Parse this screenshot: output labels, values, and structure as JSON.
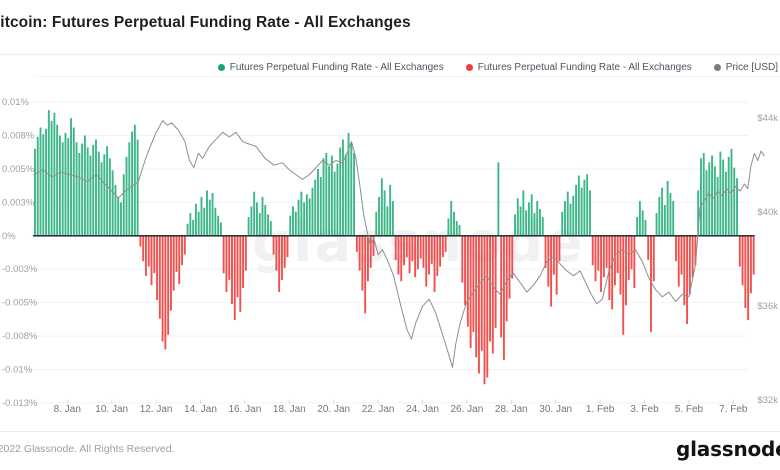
{
  "header": {
    "title": "Bitcoin: Futures Perpetual Funding Rate - All Exchanges"
  },
  "legend": {
    "items": [
      {
        "label": "Futures Perpetual Funding Rate - All Exchanges",
        "color": "#14a86f"
      },
      {
        "label": "Futures Perpetual Funding Rate - All Exchanges",
        "color": "#ef3f3c"
      },
      {
        "label": "Price [USD]",
        "color": "#7d7d7d"
      }
    ]
  },
  "watermark": {
    "text": "glassnode"
  },
  "footer": {
    "copyright": "© 2022 Glassnode. All Rights Reserved.",
    "logo": "glassnode"
  },
  "chart_data": {
    "type": "bar+line",
    "title": "Bitcoin: Futures Perpetual Funding Rate - All Exchanges",
    "grid": "horizontal",
    "legend_position": "top-right",
    "series_meta": [
      {
        "name": "Futures Perpetual Funding Rate - All Exchanges",
        "type": "bar",
        "polarity": "positive",
        "color": "#3db787"
      },
      {
        "name": "Futures Perpetual Funding Rate - All Exchanges",
        "type": "bar",
        "polarity": "negative",
        "color": "#f0514e"
      },
      {
        "name": "Price [USD]",
        "type": "line",
        "color": "#8e8e8e"
      }
    ],
    "y_left": {
      "unit": "%",
      "range_top": 0.01,
      "range_bottom": -0.0125,
      "ticks": [
        {
          "label": "0.01%",
          "value": 0.01
        },
        {
          "label": "0.008%",
          "value": 0.0075
        },
        {
          "label": "0.005%",
          "value": 0.005
        },
        {
          "label": "0.003%",
          "value": 0.0025
        },
        {
          "label": "0%",
          "value": 0
        },
        {
          "label": "-0.003%",
          "value": -0.0025
        },
        {
          "label": "-0.005%",
          "value": -0.005
        },
        {
          "label": "-0.008%",
          "value": -0.0075
        },
        {
          "label": "-0.01%",
          "value": -0.01
        },
        {
          "label": "-0.013%",
          "value": -0.0125
        }
      ]
    },
    "y_right": {
      "unit": "USD",
      "ticks": [
        {
          "label": "$44k",
          "value": 44
        },
        {
          "label": "$40k",
          "value": 40
        },
        {
          "label": "$36k",
          "value": 36
        },
        {
          "label": "$32k",
          "value": 32
        }
      ]
    },
    "x_axis": {
      "start_date": "6. Jan (12:00)",
      "end_date": "7. Feb (late)",
      "ticks": [
        {
          "label": "8. Jan",
          "day": 1.5
        },
        {
          "label": "10. Jan",
          "day": 3.5
        },
        {
          "label": "12. Jan",
          "day": 5.5
        },
        {
          "label": "14. Jan",
          "day": 7.5
        },
        {
          "label": "16. Jan",
          "day": 9.5
        },
        {
          "label": "18. Jan",
          "day": 11.5
        },
        {
          "label": "20. Jan",
          "day": 13.5
        },
        {
          "label": "22. Jan",
          "day": 15.5
        },
        {
          "label": "24. Jan",
          "day": 17.5
        },
        {
          "label": "26. Jan",
          "day": 19.5
        },
        {
          "label": "28. Jan",
          "day": 21.5
        },
        {
          "label": "30. Jan",
          "day": 23.5
        },
        {
          "label": "1. Feb",
          "day": 25.5
        },
        {
          "label": "3. Feb",
          "day": 27.5
        },
        {
          "label": "5. Feb",
          "day": 29.5
        },
        {
          "label": "7. Feb",
          "day": 31.5
        }
      ]
    },
    "funding": {
      "name": "Futures Perpetual Funding Rate - All Exchanges",
      "unit": "0.001 %",
      "bars_per_day": 8,
      "values": [
        6.5,
        7.4,
        8.1,
        7.6,
        8.0,
        9.4,
        8.6,
        9.2,
        8.3,
        7.5,
        7.0,
        7.7,
        7.3,
        8.8,
        8.1,
        7.0,
        6.2,
        6.9,
        7.5,
        6.6,
        6.0,
        6.8,
        7.2,
        6.3,
        5.5,
        6.1,
        6.7,
        5.8,
        4.9,
        3.8,
        2.9,
        2.5,
        4.6,
        5.9,
        7.0,
        7.8,
        8.3,
        7.2,
        -0.8,
        -1.9,
        -3.0,
        -2.3,
        -3.7,
        -2.8,
        -4.8,
        -6.2,
        -7.9,
        -8.5,
        -7.4,
        -5.6,
        -4.1,
        -2.7,
        -3.6,
        -2.2,
        -1.4,
        0.9,
        1.7,
        1.2,
        2.4,
        1.8,
        2.9,
        2.1,
        3.4,
        2.7,
        3.2,
        2.1,
        1.5,
        1.0,
        -2.8,
        -4.2,
        -3.3,
        -5.1,
        -6.3,
        -4.6,
        -5.7,
        -3.9,
        -2.6,
        1.4,
        2.2,
        3.3,
        2.5,
        1.7,
        2.9,
        2.3,
        1.6,
        1.1,
        -1.4,
        -2.6,
        -4.2,
        -3.3,
        -2.4,
        -1.6,
        1.5,
        2.2,
        1.8,
        2.7,
        3.3,
        2.5,
        3.1,
        2.8,
        3.6,
        4.2,
        5.0,
        4.4,
        5.8,
        6.2,
        5.2,
        6.0,
        4.8,
        5.4,
        6.6,
        7.2,
        6.1,
        7.7,
        7.0,
        6.2,
        -1.2,
        -2.6,
        -4.1,
        -5.8,
        -3.4,
        -2.4,
        -1.5,
        1.8,
        2.9,
        4.3,
        3.4,
        2.2,
        3.8,
        2.6,
        -1.8,
        -2.9,
        -3.4,
        -2.2,
        -1.6,
        -2.8,
        -1.9,
        -3.1,
        -2.5,
        -1.7,
        -2.4,
        -3.8,
        -2.9,
        -2.1,
        -4.2,
        -3.0,
        -2.3,
        -1.6,
        -1.2,
        1.3,
        2.6,
        1.8,
        1.1,
        0.8,
        -3.5,
        -5.2,
        -6.8,
        -8.4,
        -7.2,
        -9.1,
        -10.3,
        -8.6,
        -11.1,
        -10.6,
        -7.9,
        -8.8,
        -6.9,
        5.5,
        -7.6,
        -9.3,
        -6.4,
        -4.7,
        -3.2,
        1.6,
        2.8,
        2.2,
        3.4,
        1.9,
        2.5,
        3.1,
        1.7,
        2.6,
        2.0,
        1.4,
        -2.4,
        -3.8,
        -5.3,
        -2.9,
        -4.4,
        -1.9,
        1.8,
        2.6,
        3.3,
        2.4,
        3.0,
        3.8,
        4.5,
        3.6,
        4.2,
        4.6,
        3.4,
        -2.2,
        -3.4,
        -2.6,
        -4.2,
        -3.1,
        -2.4,
        -4.8,
        -5.5,
        -3.7,
        -2.8,
        -4.4,
        -7.4,
        -5.2,
        -3.3,
        -2.5,
        -3.9,
        1.4,
        2.6,
        1.9,
        1.2,
        -1.8,
        -7.2,
        -3.4,
        1.7,
        2.9,
        3.6,
        2.3,
        4.1,
        3.2,
        2.6,
        -1.9,
        -3.8,
        -2.9,
        -5.2,
        -6.6,
        -4.4,
        -3.1,
        -2.2,
        3.4,
        5.8,
        6.2,
        4.9,
        5.5,
        6.0,
        5.2,
        4.4,
        6.3,
        5.7,
        4.8,
        5.9,
        6.5,
        5.1,
        4.3,
        -2.3,
        -3.7,
        -5.4,
        -6.3,
        -4.3,
        -2.9
      ]
    },
    "price": {
      "name": "Price [USD]",
      "unit": "thousand USD",
      "points_day_usdk": [
        [
          0,
          41.6
        ],
        [
          0.4,
          41.8
        ],
        [
          0.8,
          41.5
        ],
        [
          1.2,
          41.7
        ],
        [
          1.6,
          41.6
        ],
        [
          2,
          41.5
        ],
        [
          2.4,
          41.3
        ],
        [
          2.8,
          41.6
        ],
        [
          3.2,
          41.2
        ],
        [
          3.5,
          40.9
        ],
        [
          3.8,
          40.6
        ],
        [
          4.1,
          40.9
        ],
        [
          4.4,
          41.1
        ],
        [
          4.7,
          41.3
        ],
        [
          5,
          42.2
        ],
        [
          5.2,
          42.7
        ],
        [
          5.5,
          43.4
        ],
        [
          5.8,
          43.9
        ],
        [
          6,
          43.7
        ],
        [
          6.2,
          43.8
        ],
        [
          6.5,
          43.5
        ],
        [
          6.8,
          43.0
        ],
        [
          7,
          42.2
        ],
        [
          7.2,
          41.9
        ],
        [
          7.4,
          42.5
        ],
        [
          7.6,
          42.3
        ],
        [
          7.9,
          42.8
        ],
        [
          8.2,
          43.1
        ],
        [
          8.5,
          43.4
        ],
        [
          8.8,
          43.2
        ],
        [
          9.1,
          43.4
        ],
        [
          9.4,
          43.0
        ],
        [
          9.7,
          42.9
        ],
        [
          10,
          42.8
        ],
        [
          10.4,
          42.3
        ],
        [
          10.8,
          42.0
        ],
        [
          11.2,
          42.1
        ],
        [
          11.5,
          41.8
        ],
        [
          11.8,
          41.6
        ],
        [
          12.1,
          41.4
        ],
        [
          12.4,
          41.6
        ],
        [
          12.7,
          41.9
        ],
        [
          13,
          42.2
        ],
        [
          13.3,
          42.0
        ],
        [
          13.6,
          42.2
        ],
        [
          13.9,
          42.1
        ],
        [
          14.1,
          42.5
        ],
        [
          14.3,
          43.0
        ],
        [
          14.5,
          42.3
        ],
        [
          14.7,
          41.0
        ],
        [
          14.85,
          39.9
        ],
        [
          15,
          39.2
        ],
        [
          15.15,
          38.6
        ],
        [
          15.3,
          38.9
        ],
        [
          15.5,
          38.2
        ],
        [
          15.7,
          38.4
        ],
        [
          15.9,
          38.0
        ],
        [
          16.2,
          37.3
        ],
        [
          16.5,
          36.1
        ],
        [
          16.8,
          35.0
        ],
        [
          17,
          34.6
        ],
        [
          17.2,
          35.3
        ],
        [
          17.5,
          36.0
        ],
        [
          17.8,
          36.3
        ],
        [
          18.1,
          35.7
        ],
        [
          18.4,
          34.8
        ],
        [
          18.6,
          34.2
        ],
        [
          18.85,
          33.4
        ],
        [
          19,
          34.4
        ],
        [
          19.2,
          35.3
        ],
        [
          19.5,
          36.2
        ],
        [
          19.8,
          36.6
        ],
        [
          20.1,
          37.0
        ],
        [
          20.4,
          37.3
        ],
        [
          20.7,
          36.8
        ],
        [
          21,
          36.5
        ],
        [
          21.3,
          37.1
        ],
        [
          21.6,
          37.4
        ],
        [
          21.9,
          37.0
        ],
        [
          22.2,
          36.6
        ],
        [
          22.5,
          36.9
        ],
        [
          22.8,
          37.3
        ],
        [
          23.1,
          37.9
        ],
        [
          23.4,
          38.1
        ],
        [
          23.7,
          37.8
        ],
        [
          24,
          37.5
        ],
        [
          24.3,
          37.3
        ],
        [
          24.6,
          37.5
        ],
        [
          24.85,
          37.0
        ],
        [
          25.1,
          36.5
        ],
        [
          25.35,
          36.1
        ],
        [
          25.6,
          36.3
        ],
        [
          25.9,
          37.5
        ],
        [
          26.2,
          38.2
        ],
        [
          26.5,
          38.4
        ],
        [
          26.8,
          38.2
        ],
        [
          27.1,
          38.4
        ],
        [
          27.4,
          37.9
        ],
        [
          27.7,
          37.2
        ],
        [
          28,
          36.7
        ],
        [
          28.3,
          36.4
        ],
        [
          28.6,
          36.6
        ],
        [
          28.9,
          36.2
        ],
        [
          29.2,
          36.5
        ],
        [
          29.5,
          36.4
        ],
        [
          29.8,
          37.8
        ],
        [
          29.9,
          39.0
        ],
        [
          30,
          40.2
        ],
        [
          30.2,
          40.5
        ],
        [
          30.4,
          40.8
        ],
        [
          30.6,
          40.6
        ],
        [
          30.8,
          40.9
        ],
        [
          31,
          40.7
        ],
        [
          31.2,
          41.0
        ],
        [
          31.4,
          40.8
        ],
        [
          31.6,
          41.1
        ],
        [
          31.8,
          40.9
        ],
        [
          32,
          41.2
        ],
        [
          32.15,
          41.0
        ],
        [
          32.3,
          42.0
        ],
        [
          32.45,
          42.5
        ],
        [
          32.6,
          42.2
        ],
        [
          32.75,
          42.6
        ],
        [
          32.9,
          42.4
        ]
      ]
    }
  }
}
